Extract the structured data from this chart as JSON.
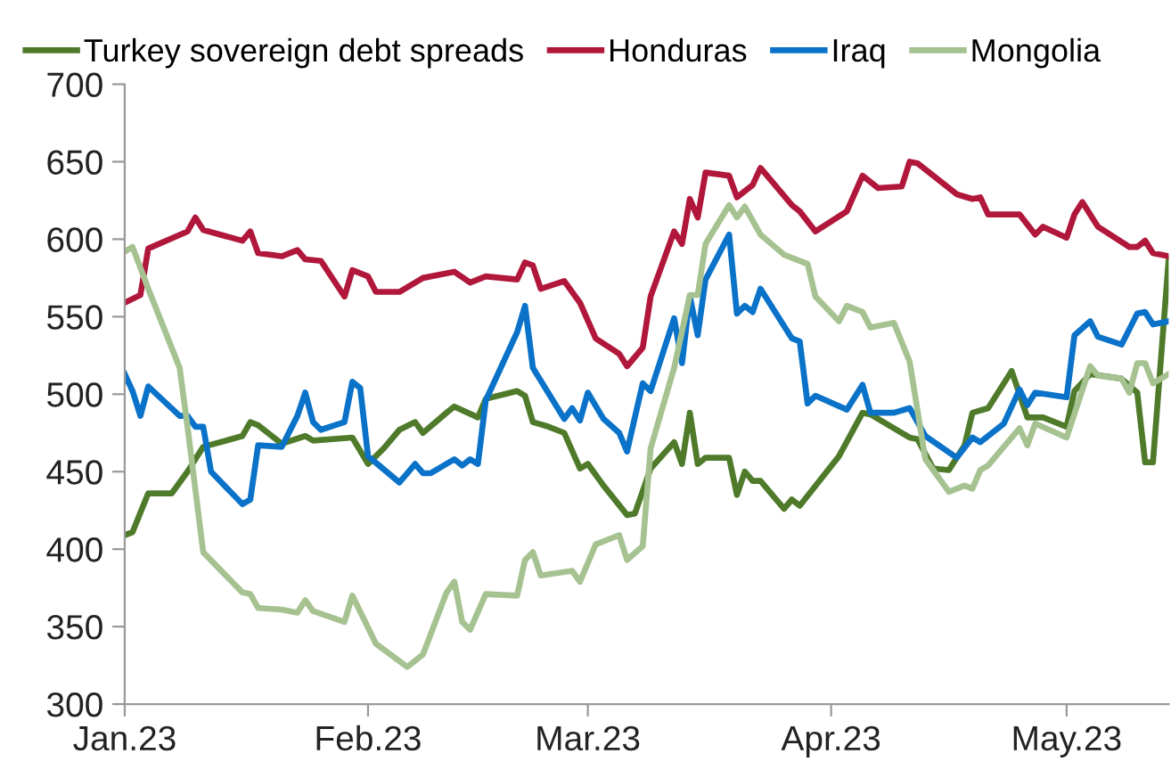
{
  "chart_data": {
    "type": "line",
    "xlim": [
      "2023-01-01",
      "2023-05-14"
    ],
    "xticks": [
      {
        "value": "2023-01-01",
        "label": "Jan.23"
      },
      {
        "value": "2023-02-01",
        "label": "Feb.23"
      },
      {
        "value": "2023-03-01",
        "label": "Mar.23"
      },
      {
        "value": "2023-04-01",
        "label": "Apr.23"
      },
      {
        "value": "2023-05-01",
        "label": "May.23"
      }
    ],
    "ylim": [
      300,
      700
    ],
    "yticks": [
      300,
      350,
      400,
      450,
      500,
      550,
      600,
      650,
      700
    ],
    "grid": false,
    "legend": "top",
    "marker": "none",
    "line_style": "solid",
    "series": [
      {
        "name": "Turkey sovereign debt spreads",
        "color": "#4e7a2a",
        "x": [
          "2023-01-01",
          "2023-01-02",
          "2023-01-04",
          "2023-01-07",
          "2023-01-09",
          "2023-01-11",
          "2023-01-16",
          "2023-01-17",
          "2023-01-18",
          "2023-01-21",
          "2023-01-24",
          "2023-01-25",
          "2023-01-30",
          "2023-02-01",
          "2023-02-03",
          "2023-02-05",
          "2023-02-07",
          "2023-02-08",
          "2023-02-11",
          "2023-02-12",
          "2023-02-15",
          "2023-02-16",
          "2023-02-20",
          "2023-02-21",
          "2023-02-22",
          "2023-02-24",
          "2023-02-26",
          "2023-02-28",
          "2023-03-01",
          "2023-03-03",
          "2023-03-06",
          "2023-03-07",
          "2023-03-09",
          "2023-03-12",
          "2023-03-13",
          "2023-03-14",
          "2023-03-15",
          "2023-03-16",
          "2023-03-19",
          "2023-03-20",
          "2023-03-21",
          "2023-03-22",
          "2023-03-23",
          "2023-03-26",
          "2023-03-27",
          "2023-03-28",
          "2023-04-02",
          "2023-04-05",
          "2023-04-06",
          "2023-04-11",
          "2023-04-12",
          "2023-04-14",
          "2023-04-16",
          "2023-04-18",
          "2023-04-19",
          "2023-04-21",
          "2023-04-24",
          "2023-04-26",
          "2023-04-28",
          "2023-05-01",
          "2023-05-02",
          "2023-05-04",
          "2023-05-08",
          "2023-05-10",
          "2023-05-11",
          "2023-05-12",
          "2023-05-14"
        ],
        "values": [
          409,
          411,
          436,
          436,
          450,
          466,
          473,
          482,
          480,
          468,
          473,
          470,
          472,
          455,
          465,
          477,
          482,
          475,
          488,
          492,
          485,
          497,
          502,
          499,
          482,
          479,
          475,
          452,
          455,
          441,
          422,
          423,
          452,
          469,
          455,
          488,
          455,
          459,
          459,
          435,
          450,
          444,
          444,
          426,
          432,
          428,
          460,
          488,
          487,
          472,
          471,
          452,
          451,
          467,
          488,
          491,
          515,
          485,
          485,
          479,
          502,
          513,
          510,
          501,
          456,
          456,
          587
        ]
      },
      {
        "name": "Honduras",
        "color": "#b0173a",
        "x": [
          "2023-01-01",
          "2023-01-03",
          "2023-01-04",
          "2023-01-09",
          "2023-01-10",
          "2023-01-11",
          "2023-01-16",
          "2023-01-17",
          "2023-01-18",
          "2023-01-21",
          "2023-01-23",
          "2023-01-24",
          "2023-01-26",
          "2023-01-29",
          "2023-01-30",
          "2023-02-01",
          "2023-02-02",
          "2023-02-05",
          "2023-02-08",
          "2023-02-12",
          "2023-02-14",
          "2023-02-16",
          "2023-02-20",
          "2023-02-21",
          "2023-02-22",
          "2023-02-23",
          "2023-02-26",
          "2023-02-28",
          "2023-03-02",
          "2023-03-05",
          "2023-03-06",
          "2023-03-08",
          "2023-03-09",
          "2023-03-12",
          "2023-03-13",
          "2023-03-14",
          "2023-03-15",
          "2023-03-16",
          "2023-03-19",
          "2023-03-20",
          "2023-03-22",
          "2023-03-23",
          "2023-03-27",
          "2023-03-28",
          "2023-03-30",
          "2023-04-03",
          "2023-04-05",
          "2023-04-07",
          "2023-04-10",
          "2023-04-11",
          "2023-04-12",
          "2023-04-17",
          "2023-04-19",
          "2023-04-20",
          "2023-04-21",
          "2023-04-25",
          "2023-04-27",
          "2023-04-28",
          "2023-05-01",
          "2023-05-02",
          "2023-05-03",
          "2023-05-05",
          "2023-05-09",
          "2023-05-10",
          "2023-05-11",
          "2023-05-12",
          "2023-05-14"
        ],
        "values": [
          559,
          564,
          594,
          605,
          614,
          606,
          599,
          605,
          591,
          589,
          593,
          587,
          586,
          563,
          580,
          576,
          566,
          566,
          575,
          579,
          572,
          576,
          574,
          585,
          583,
          568,
          573,
          559,
          536,
          526,
          518,
          530,
          563,
          605,
          597,
          626,
          614,
          643,
          641,
          627,
          635,
          646,
          622,
          618,
          605,
          618,
          641,
          633,
          634,
          650,
          649,
          629,
          626,
          627,
          616,
          616,
          603,
          608,
          601,
          616,
          624,
          608,
          595,
          595,
          599,
          591,
          589
        ]
      },
      {
        "name": "Iraq",
        "color": "#0a72c8",
        "x": [
          "2023-01-01",
          "2023-01-02",
          "2023-01-03",
          "2023-01-04",
          "2023-01-08",
          "2023-01-09",
          "2023-01-10",
          "2023-01-11",
          "2023-01-12",
          "2023-01-16",
          "2023-01-17",
          "2023-01-18",
          "2023-01-21",
          "2023-01-23",
          "2023-01-24",
          "2023-01-25",
          "2023-01-26",
          "2023-01-29",
          "2023-01-30",
          "2023-01-31",
          "2023-02-01",
          "2023-02-05",
          "2023-02-07",
          "2023-02-08",
          "2023-02-09",
          "2023-02-12",
          "2023-02-13",
          "2023-02-14",
          "2023-02-15",
          "2023-02-16",
          "2023-02-20",
          "2023-02-21",
          "2023-02-22",
          "2023-02-26",
          "2023-02-27",
          "2023-02-28",
          "2023-03-01",
          "2023-03-03",
          "2023-03-05",
          "2023-03-06",
          "2023-03-08",
          "2023-03-09",
          "2023-03-12",
          "2023-03-13",
          "2023-03-14",
          "2023-03-15",
          "2023-03-16",
          "2023-03-19",
          "2023-03-20",
          "2023-03-21",
          "2023-03-22",
          "2023-03-23",
          "2023-03-27",
          "2023-03-28",
          "2023-03-29",
          "2023-03-30",
          "2023-04-03",
          "2023-04-05",
          "2023-04-06",
          "2023-04-09",
          "2023-04-11",
          "2023-04-13",
          "2023-04-17",
          "2023-04-19",
          "2023-04-20",
          "2023-04-23",
          "2023-04-25",
          "2023-04-26",
          "2023-04-27",
          "2023-05-01",
          "2023-05-02",
          "2023-05-04",
          "2023-05-05",
          "2023-05-08",
          "2023-05-10",
          "2023-05-11",
          "2023-05-12",
          "2023-05-14"
        ],
        "values": [
          513,
          502,
          486,
          505,
          486,
          486,
          479,
          479,
          450,
          429,
          432,
          467,
          466,
          486,
          501,
          482,
          477,
          482,
          508,
          504,
          460,
          443,
          455,
          449,
          449,
          458,
          454,
          458,
          455,
          496,
          540,
          557,
          517,
          484,
          491,
          483,
          501,
          484,
          475,
          463,
          507,
          502,
          549,
          520,
          563,
          538,
          574,
          603,
          552,
          557,
          553,
          568,
          536,
          534,
          494,
          499,
          490,
          506,
          488,
          488,
          491,
          473,
          459,
          472,
          469,
          481,
          503,
          493,
          501,
          498,
          538,
          547,
          537,
          532,
          552,
          553,
          545,
          547
        ]
      },
      {
        "name": "Mongolia",
        "color": "#a5c290",
        "x": [
          "2023-01-01",
          "2023-01-02",
          "2023-01-04",
          "2023-01-08",
          "2023-01-09",
          "2023-01-11",
          "2023-01-16",
          "2023-01-17",
          "2023-01-18",
          "2023-01-21",
          "2023-01-23",
          "2023-01-24",
          "2023-01-25",
          "2023-01-29",
          "2023-01-30",
          "2023-02-02",
          "2023-02-06",
          "2023-02-08",
          "2023-02-11",
          "2023-02-12",
          "2023-02-13",
          "2023-02-14",
          "2023-02-16",
          "2023-02-20",
          "2023-02-21",
          "2023-02-22",
          "2023-02-23",
          "2023-02-27",
          "2023-02-28",
          "2023-03-02",
          "2023-03-05",
          "2023-03-06",
          "2023-03-08",
          "2023-03-09",
          "2023-03-12",
          "2023-03-14",
          "2023-03-15",
          "2023-03-16",
          "2023-03-19",
          "2023-03-20",
          "2023-03-21",
          "2023-03-23",
          "2023-03-26",
          "2023-03-29",
          "2023-03-30",
          "2023-04-02",
          "2023-04-03",
          "2023-04-05",
          "2023-04-06",
          "2023-04-09",
          "2023-04-11",
          "2023-04-13",
          "2023-04-16",
          "2023-04-18",
          "2023-04-19",
          "2023-04-20",
          "2023-04-21",
          "2023-04-25",
          "2023-04-26",
          "2023-04-27",
          "2023-05-01",
          "2023-05-04",
          "2023-05-05",
          "2023-05-08",
          "2023-05-09",
          "2023-05-10",
          "2023-05-11",
          "2023-05-12",
          "2023-05-14"
        ],
        "values": [
          592,
          595,
          568,
          517,
          479,
          398,
          372,
          371,
          362,
          361,
          359,
          367,
          360,
          353,
          370,
          339,
          324,
          332,
          372,
          379,
          353,
          348,
          371,
          370,
          393,
          398,
          383,
          386,
          379,
          403,
          409,
          393,
          402,
          465,
          517,
          564,
          564,
          597,
          622,
          614,
          621,
          603,
          590,
          584,
          563,
          547,
          557,
          553,
          543,
          546,
          521,
          458,
          437,
          441,
          439,
          451,
          454,
          478,
          467,
          481,
          472,
          518,
          512,
          510,
          501,
          520,
          520,
          507,
          513
        ]
      }
    ]
  }
}
